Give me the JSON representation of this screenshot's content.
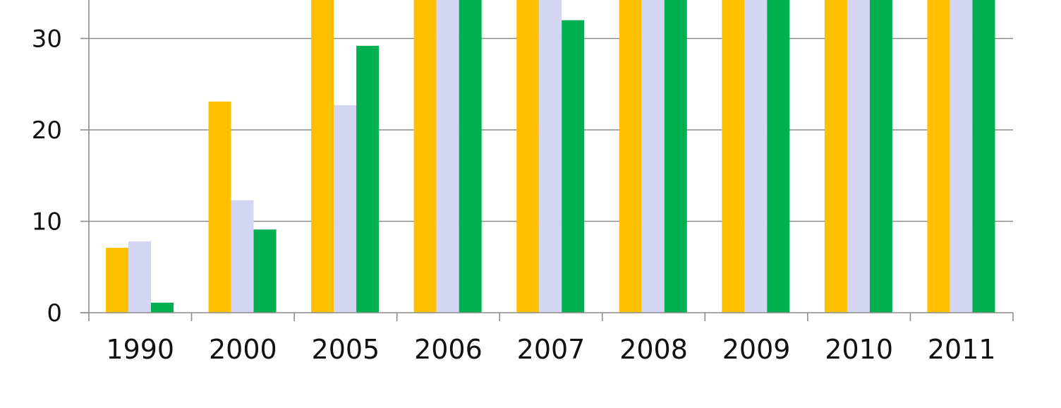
{
  "chart_data": {
    "type": "bar",
    "title": "",
    "xlabel": "",
    "ylabel": "",
    "categories": [
      "1990",
      "2000",
      "2005",
      "2006",
      "2007",
      "2008",
      "2009",
      "2010",
      "2011"
    ],
    "series": [
      {
        "values": [
          7.1,
          23.1,
          34.5,
          34.5,
          34.5,
          34.5,
          34.5,
          34.5,
          34.5
        ],
        "color": "#FFC000"
      },
      {
        "values": [
          7.8,
          12.3,
          22.7,
          34.5,
          34.5,
          34.5,
          34.5,
          34.5,
          34.5
        ],
        "color": "#D4D4F3"
      },
      {
        "values": [
          1.1,
          9.1,
          29.2,
          34.5,
          32.0,
          34.5,
          34.5,
          34.5,
          34.5
        ],
        "color": "#00B050"
      }
    ],
    "y_ticks": [
      "0",
      "10",
      "20",
      "30"
    ],
    "ylim": [
      0,
      34.5
    ],
    "grid": true,
    "legend": "none"
  }
}
